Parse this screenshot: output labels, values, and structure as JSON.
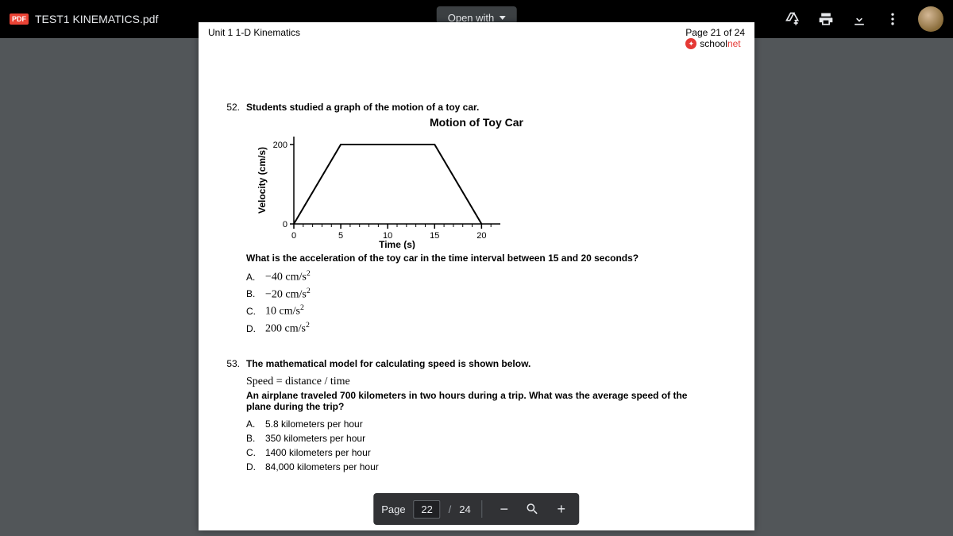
{
  "topbar": {
    "badge": "PDF",
    "filename": "TEST1 KINEMATICS.pdf",
    "open_with": "Open with"
  },
  "page_header": {
    "left": "Unit 1 1-D Kinematics",
    "right": "Page 21 of 24",
    "brand_school": "school",
    "brand_net": "net"
  },
  "q52": {
    "num": "52.",
    "prompt": "Students studied a graph of the motion of a toy car.",
    "chart": {
      "type": "line",
      "title": "Motion of Toy Car",
      "xlabel": "Time (s)",
      "ylabel": "Velocity (cm/s)",
      "x_ticks": [
        0,
        5,
        10,
        15,
        20
      ],
      "y_ticks": [
        0,
        200
      ],
      "xlim": [
        0,
        22
      ],
      "ylim": [
        0,
        220
      ],
      "points": [
        [
          0,
          0
        ],
        [
          5,
          200
        ],
        [
          15,
          200
        ],
        [
          20,
          0
        ]
      ],
      "line_color": "#000000",
      "line_width": 2,
      "axis_color": "#000000",
      "tick_fontsize": 11,
      "label_fontsize": 12,
      "label_fontweight": "bold",
      "title_fontsize": 14,
      "minor_tick_step_x": 1,
      "background_color": "#ffffff"
    },
    "question": "What is the acceleration of the toy car in the time interval between 15 and 20 seconds?",
    "options": [
      {
        "label": "A.",
        "text": "−40 cm/s",
        "sup": "2"
      },
      {
        "label": "B.",
        "text": "−20 cm/s",
        "sup": "2"
      },
      {
        "label": "C.",
        "text": "10 cm/s",
        "sup": "2"
      },
      {
        "label": "D.",
        "text": "200 cm/s",
        "sup": "2"
      }
    ]
  },
  "q53": {
    "num": "53.",
    "prompt": "The mathematical model for calculating speed is shown below.",
    "formula": "Speed = distance / time",
    "question": "An airplane traveled 700 kilometers in two hours during a trip. What was the average speed of the plane during the trip?",
    "options": [
      {
        "label": "A.",
        "text": "5.8 kilometers per hour"
      },
      {
        "label": "B.",
        "text": "350 kilometers per hour"
      },
      {
        "label": "C.",
        "text": "1400 kilometers per hour"
      },
      {
        "label": "D.",
        "text": "84,000 kilometers per hour"
      }
    ]
  },
  "pager": {
    "label": "Page",
    "current": "22",
    "sep": "/",
    "total": "24"
  }
}
